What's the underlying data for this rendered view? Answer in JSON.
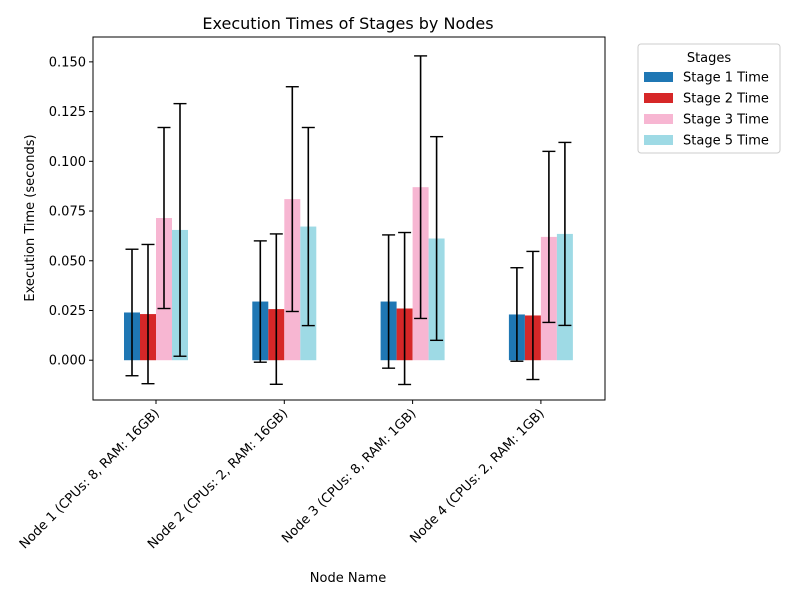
{
  "chart_data": {
    "type": "bar",
    "title": "Execution Times of Stages by Nodes",
    "xlabel": "Node Name",
    "ylabel": "Execution Time (seconds)",
    "categories": [
      "Node 1 (CPUs: 8, RAM: 16GB)",
      "Node 2 (CPUs: 2, RAM: 16GB)",
      "Node 3 (CPUs: 8, RAM: 1GB)",
      "Node 4 (CPUs: 2, RAM: 1GB)"
    ],
    "series": [
      {
        "name": "Stage 1 Time",
        "color": "#1f77b4",
        "values": [
          0.024,
          0.0295,
          0.0295,
          0.023
        ],
        "errors": [
          0.0318,
          0.0305,
          0.0335,
          0.0235
        ]
      },
      {
        "name": "Stage 2 Time",
        "color": "#d62728",
        "values": [
          0.0232,
          0.0257,
          0.026,
          0.0225
        ],
        "errors": [
          0.035,
          0.0378,
          0.0382,
          0.0322
        ]
      },
      {
        "name": "Stage 3 Time",
        "color": "#f7b6d2",
        "values": [
          0.0715,
          0.081,
          0.087,
          0.062
        ],
        "errors": [
          0.0455,
          0.0565,
          0.066,
          0.043
        ]
      },
      {
        "name": "Stage 5 Time",
        "color": "#9edae5",
        "values": [
          0.0655,
          0.0672,
          0.0612,
          0.0635
        ],
        "errors": [
          0.0635,
          0.0498,
          0.0512,
          0.046
        ]
      }
    ],
    "ylim": [
      -0.02,
      0.1625
    ],
    "yticks": [
      "0.000",
      "0.025",
      "0.050",
      "0.075",
      "0.100",
      "0.125",
      "0.150"
    ],
    "ytick_values": [
      0.0,
      0.025,
      0.05,
      0.075,
      0.1,
      0.125,
      0.15
    ],
    "legend": {
      "title": "Stages",
      "placement": "outside-top-right"
    },
    "grid": false
  }
}
